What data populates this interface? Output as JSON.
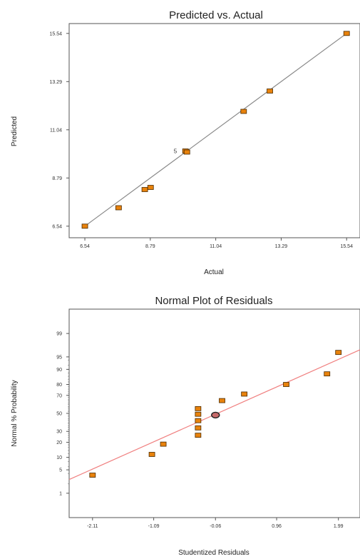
{
  "chart_data": [
    {
      "type": "scatter",
      "title": "Predicted vs. Actual",
      "xlabel": "Actual",
      "ylabel": "Predicted",
      "xlim": [
        6.0,
        16.0
      ],
      "ylim": [
        6.0,
        16.0
      ],
      "x_ticks": [
        "6.54",
        "8.79",
        "11.04",
        "13.29",
        "15.54"
      ],
      "y_ticks": [
        "6.54",
        "8.79",
        "11.04",
        "13.29",
        "15.54"
      ],
      "points": [
        {
          "x": 6.54,
          "y": 6.54
        },
        {
          "x": 7.7,
          "y": 7.4
        },
        {
          "x": 8.6,
          "y": 8.25
        },
        {
          "x": 8.8,
          "y": 8.35
        },
        {
          "x": 10.0,
          "y": 10.05
        },
        {
          "x": 10.05,
          "y": 10.0
        },
        {
          "x": 12.0,
          "y": 11.9
        },
        {
          "x": 12.9,
          "y": 12.85
        },
        {
          "x": 15.54,
          "y": 15.54
        }
      ],
      "annotations": [
        {
          "text": "5",
          "x": 9.95,
          "y": 10.05
        }
      ],
      "reference_line": {
        "from": [
          6.54,
          6.54
        ],
        "to": [
          15.54,
          15.54
        ],
        "color": "#888888"
      },
      "grid": false,
      "marker_color": "#e8820c"
    },
    {
      "type": "scatter",
      "title": "Normal Plot of Residuals",
      "xlabel": "Studentized Residuals",
      "ylabel": "Normal % Probability",
      "xlim": [
        -2.5,
        2.35
      ],
      "y_scale": "normal-probability",
      "x_ticks": [
        "-2.11",
        "-1.09",
        "-0.06",
        "0.96",
        "1.99"
      ],
      "y_ticks": [
        "1",
        "5",
        "10",
        "20",
        "30",
        "50",
        "70",
        "80",
        "90",
        "95",
        "99"
      ],
      "points": [
        {
          "x": -2.11,
          "y": 3.6
        },
        {
          "x": -1.12,
          "y": 11.6
        },
        {
          "x": -0.93,
          "y": 18.5
        },
        {
          "x": -0.35,
          "y": 26.2
        },
        {
          "x": -0.35,
          "y": 33.6
        },
        {
          "x": -0.35,
          "y": 41.6
        },
        {
          "x": -0.35,
          "y": 49.0
        },
        {
          "x": -0.35,
          "y": 55.5
        },
        {
          "x": 0.05,
          "y": 64.5
        },
        {
          "x": 0.42,
          "y": 71.3
        },
        {
          "x": 1.12,
          "y": 80.0
        },
        {
          "x": 1.8,
          "y": 87.5
        },
        {
          "x": 1.99,
          "y": 96.2
        }
      ],
      "highlighted_point": {
        "x": -0.06,
        "y": 48.0
      },
      "reference_line": {
        "from": [
          -2.5,
          2.7
        ],
        "to": [
          2.35,
          96.8
        ],
        "color": "#f08080"
      },
      "grid": false,
      "marker_color": "#e8820c"
    }
  ]
}
